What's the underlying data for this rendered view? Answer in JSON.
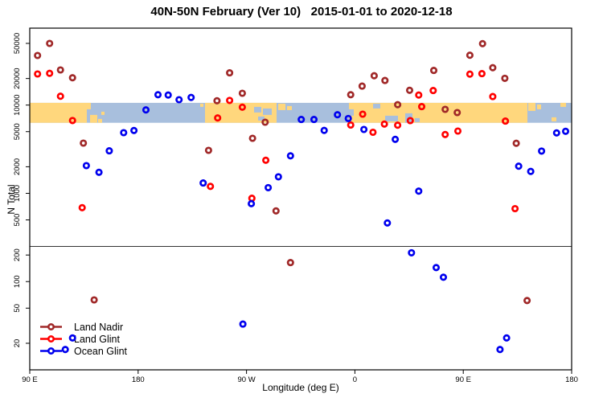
{
  "chart_data": {
    "type": "scatter",
    "title": "40N-50N February (Ver 10)   2015-01-01 to 2020-12-18",
    "xlabel": "Longitude (deg E)",
    "ylabel": "N Total",
    "x_axis": {
      "range": [
        90,
        540
      ],
      "note": "longitude wraps eastward: 90E > 180 > 90W > 0 > 90E > 180",
      "ticks": [
        {
          "label": "90 E",
          "lon": 90
        },
        {
          "label": "180",
          "lon": 180
        },
        {
          "label": "90 W",
          "lon": 270
        },
        {
          "label": "0",
          "lon": 360
        },
        {
          "label": "90 E",
          "lon": 450
        },
        {
          "label": "180",
          "lon": 540
        }
      ]
    },
    "y_axis": {
      "scale": "log",
      "range": [
        10,
        74000
      ],
      "ticks": [
        50000,
        20000,
        10000,
        5000,
        2000,
        1000,
        500,
        200,
        100,
        50,
        20
      ],
      "grid": false
    },
    "reference_line_y": 250,
    "map_band": {
      "n_range": [
        6300,
        10600
      ],
      "ocean_color": "#A8BFDD",
      "land_color": "#FFD77D"
    },
    "legend": {
      "position": "bottom-left",
      "entries": [
        "Land Nadir",
        "Land Glint",
        "Ocean Glint"
      ]
    },
    "series": [
      {
        "name": "Land Nadir",
        "color": "#A02828",
        "points": [
          [
            96.5,
            36500
          ],
          [
            106.5,
            50000
          ],
          [
            115.5,
            25000
          ],
          [
            125.5,
            20400
          ],
          [
            134.5,
            3710
          ],
          [
            143.5,
            62
          ],
          [
            238.5,
            3070
          ],
          [
            245.5,
            11200
          ],
          [
            256,
            23200
          ],
          [
            266.5,
            13600
          ],
          [
            275,
            4200
          ],
          [
            285.5,
            6390
          ],
          [
            294.5,
            633
          ],
          [
            306.5,
            164
          ],
          [
            356.5,
            13100
          ],
          [
            366,
            16400
          ],
          [
            376,
            21500
          ],
          [
            385,
            19000
          ],
          [
            395.5,
            10100
          ],
          [
            405.5,
            14700
          ],
          [
            425.5,
            24700
          ],
          [
            435,
            8950
          ],
          [
            445,
            8220
          ],
          [
            455.5,
            36700
          ],
          [
            466,
            49700
          ],
          [
            474.5,
            26500
          ],
          [
            484.5,
            20100
          ],
          [
            494,
            3690
          ],
          [
            503,
            61
          ]
        ]
      },
      {
        "name": "Land Glint",
        "color": "#FF0000",
        "points": [
          [
            96.5,
            22500
          ],
          [
            106.5,
            22900
          ],
          [
            115.5,
            12600
          ],
          [
            125.5,
            6680
          ],
          [
            133.5,
            688
          ],
          [
            240,
            1200
          ],
          [
            246,
            7150
          ],
          [
            256,
            11300
          ],
          [
            266.5,
            9460
          ],
          [
            274.5,
            880
          ],
          [
            286,
            2370
          ],
          [
            356.5,
            5940
          ],
          [
            366.5,
            7890
          ],
          [
            375,
            4920
          ],
          [
            384.5,
            6100
          ],
          [
            395.5,
            5920
          ],
          [
            406,
            6670
          ],
          [
            413,
            13000
          ],
          [
            415.5,
            9600
          ],
          [
            425,
            14600
          ],
          [
            435,
            4640
          ],
          [
            445.5,
            5080
          ],
          [
            455.5,
            22400
          ],
          [
            465.5,
            22700
          ],
          [
            474.5,
            12500
          ],
          [
            485,
            6580
          ],
          [
            493,
            671
          ]
        ]
      },
      {
        "name": "Ocean Glint",
        "color": "#0000EE",
        "points": [
          [
            137,
            2060
          ],
          [
            147.5,
            1730
          ],
          [
            156,
            3030
          ],
          [
            168,
            4870
          ],
          [
            176.5,
            5150
          ],
          [
            186.5,
            8810
          ],
          [
            196.5,
            13100
          ],
          [
            205,
            13000
          ],
          [
            214,
            11500
          ],
          [
            224,
            12200
          ],
          [
            234,
            1310
          ],
          [
            267,
            33
          ],
          [
            274,
            764
          ],
          [
            288,
            1160
          ],
          [
            296.5,
            1540
          ],
          [
            306.5,
            2660
          ],
          [
            315.5,
            6870
          ],
          [
            326,
            6870
          ],
          [
            334.5,
            5160
          ],
          [
            345.5,
            7780
          ],
          [
            354.5,
            7050
          ],
          [
            367.5,
            5300
          ],
          [
            387,
            462
          ],
          [
            393.5,
            4090
          ],
          [
            407,
            212
          ],
          [
            413,
            1060
          ],
          [
            427.5,
            144
          ],
          [
            433.5,
            112
          ],
          [
            119.5,
            17
          ],
          [
            125.5,
            23
          ],
          [
            480.5,
            17
          ],
          [
            486,
            23
          ],
          [
            496,
            2030
          ],
          [
            506,
            1770
          ],
          [
            515,
            3010
          ],
          [
            527.5,
            4840
          ],
          [
            535,
            5050
          ]
        ]
      }
    ]
  }
}
